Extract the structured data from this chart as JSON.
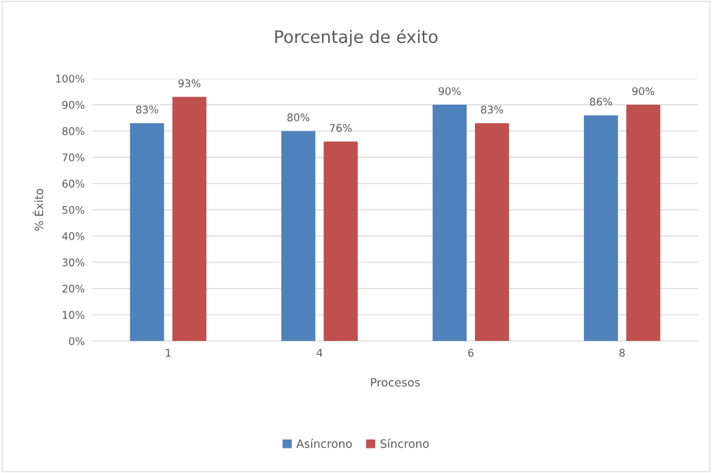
{
  "chart_data": {
    "type": "bar",
    "title": "Porcentaje de éxito",
    "xlabel": "Procesos",
    "ylabel": "% Éxito",
    "categories": [
      "1",
      "4",
      "6",
      "8"
    ],
    "series": [
      {
        "name": "Asíncrono",
        "color": "#4f81bd",
        "values": [
          83,
          80,
          90,
          86
        ],
        "value_labels": [
          "83%",
          "80%",
          "90%",
          "86%"
        ]
      },
      {
        "name": "Síncrono",
        "color": "#c0504d",
        "values": [
          93,
          76,
          83,
          90
        ],
        "value_labels": [
          "93%",
          "76%",
          "83%",
          "90%"
        ]
      }
    ],
    "ylim": [
      0,
      100
    ],
    "yticks": [
      {
        "value": 0,
        "label": "0%"
      },
      {
        "value": 10,
        "label": "10%"
      },
      {
        "value": 20,
        "label": "20%"
      },
      {
        "value": 30,
        "label": "30%"
      },
      {
        "value": 40,
        "label": "40%"
      },
      {
        "value": 50,
        "label": "50%"
      },
      {
        "value": 60,
        "label": "60%"
      },
      {
        "value": 70,
        "label": "70%"
      },
      {
        "value": 80,
        "label": "80%"
      },
      {
        "value": 90,
        "label": "90%"
      },
      {
        "value": 100,
        "label": "100%"
      }
    ],
    "grid": "y",
    "legend": "bottom"
  }
}
